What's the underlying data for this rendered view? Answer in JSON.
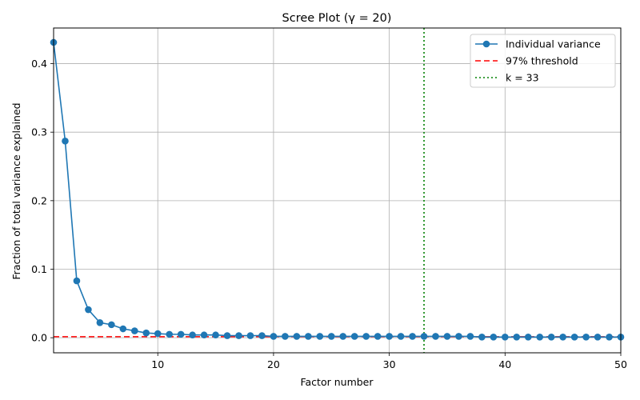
{
  "chart_data": {
    "type": "line",
    "title": "Scree Plot (γ = 20)",
    "xlabel": "Factor number",
    "ylabel": "Fraction of total variance explained",
    "xlim": [
      1,
      50
    ],
    "ylim": [
      -0.022,
      0.452
    ],
    "xticks": [
      10,
      20,
      30,
      40,
      50
    ],
    "yticks": [
      0.0,
      0.1,
      0.2,
      0.3,
      0.4
    ],
    "grid": true,
    "legend_position": "top-right",
    "series": [
      {
        "name": "Individual variance",
        "color": "#1f77b4",
        "style": "line-with-circle-markers",
        "x": [
          1,
          2,
          3,
          4,
          5,
          6,
          7,
          8,
          9,
          10,
          11,
          12,
          13,
          14,
          15,
          16,
          17,
          18,
          19,
          20,
          21,
          22,
          23,
          24,
          25,
          26,
          27,
          28,
          29,
          30,
          31,
          32,
          33,
          34,
          35,
          36,
          37,
          38,
          39,
          40,
          41,
          42,
          43,
          44,
          45,
          46,
          47,
          48,
          49,
          50
        ],
        "values": [
          0.431,
          0.287,
          0.083,
          0.041,
          0.022,
          0.019,
          0.013,
          0.01,
          0.007,
          0.006,
          0.005,
          0.005,
          0.004,
          0.004,
          0.004,
          0.003,
          0.003,
          0.003,
          0.003,
          0.002,
          0.002,
          0.002,
          0.002,
          0.002,
          0.002,
          0.002,
          0.002,
          0.002,
          0.002,
          0.002,
          0.002,
          0.002,
          0.002,
          0.002,
          0.002,
          0.002,
          0.002,
          0.001,
          0.001,
          0.001,
          0.001,
          0.001,
          0.001,
          0.001,
          0.001,
          0.001,
          0.001,
          0.001,
          0.001,
          0.001
        ]
      }
    ],
    "reference_lines": [
      {
        "name": "97% threshold",
        "orientation": "horizontal",
        "value": 0.0015,
        "color": "#ff0000",
        "style": "dashed"
      },
      {
        "name": "k = 33",
        "orientation": "vertical",
        "value": 33,
        "color": "#008000",
        "style": "dotted"
      }
    ]
  }
}
